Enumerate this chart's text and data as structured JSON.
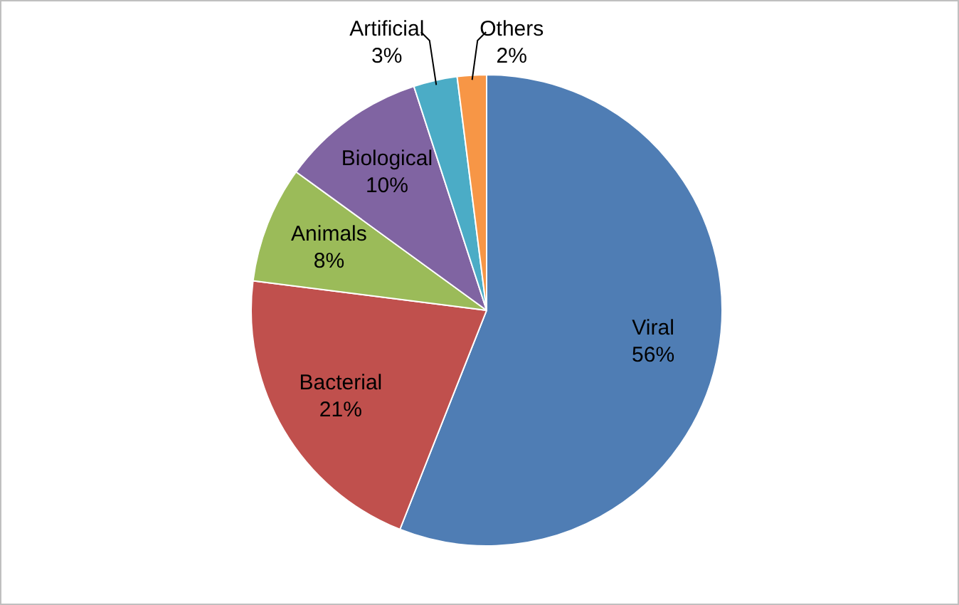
{
  "chart_data": {
    "type": "pie",
    "categories": [
      "Viral",
      "Bacterial",
      "Animals",
      "Biological",
      "Artificial",
      "Others"
    ],
    "values": [
      56,
      21,
      8,
      10,
      3,
      2
    ],
    "value_labels": [
      "56%",
      "21%",
      "8%",
      "10%",
      "3%",
      "2%"
    ],
    "colors": [
      "#4f7db4",
      "#c0504d",
      "#9bbb59",
      "#8064a2",
      "#4bacc6",
      "#f79646"
    ],
    "legend": false
  }
}
